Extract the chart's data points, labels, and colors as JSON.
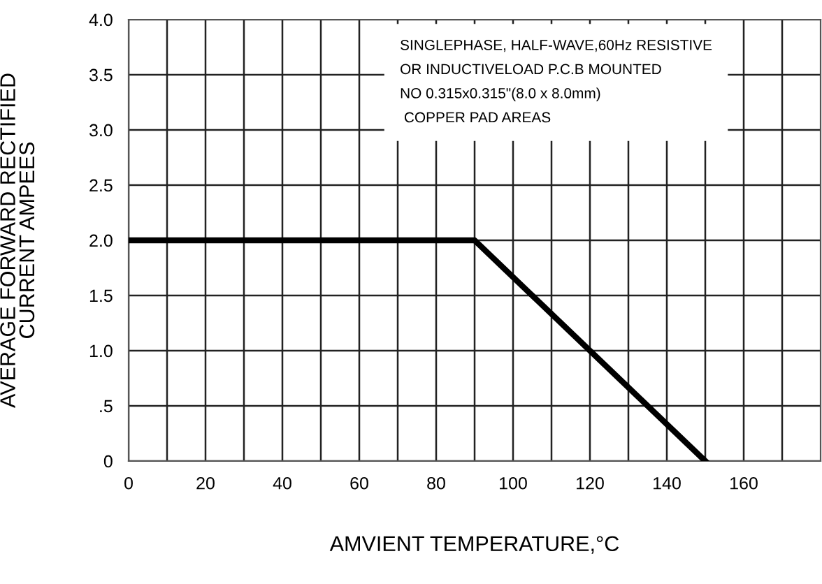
{
  "chart_data": {
    "type": "line",
    "xlabel": "AMVIENT TEMPERATURE,°C",
    "ylabel": "AVERAGE FORWARD RECTIFIED\nCURRENT AMPEES",
    "x": [
      0,
      90,
      150
    ],
    "series": [
      {
        "color": "#000000",
        "values": [
          2.0,
          2.0,
          0
        ]
      }
    ],
    "xlim": [
      0,
      180
    ],
    "xticks": [
      0,
      {
        "value": 10,
        "label": null
      },
      20,
      {
        "value": 30,
        "label": null
      },
      40,
      {
        "value": 50,
        "label": null
      },
      60,
      {
        "value": 70,
        "label": null
      },
      80,
      {
        "value": 90,
        "label": null
      },
      100,
      {
        "value": 110,
        "label": null
      },
      120,
      {
        "value": 130,
        "label": null
      },
      140,
      {
        "value": 150,
        "label": null
      },
      160,
      {
        "value": 170,
        "label": null
      }
    ],
    "ylim": [
      0,
      4.0
    ],
    "yticks": [
      0,
      {
        "value": 0.5,
        "label": ".5"
      },
      {
        "value": 1.0,
        "label": "1.0"
      },
      1.5,
      {
        "value": 2.0,
        "label": "2.0"
      },
      2.5,
      {
        "value": 3.0,
        "label": "3.0"
      },
      3.5,
      {
        "value": 4.0,
        "label": "4.0"
      }
    ],
    "grid": true,
    "line_style": "solid",
    "marker": "none",
    "annotations": [
      "SINGLEPHASE, HALF-WAVE,60Hz RESISTIVE\nOR INDUCTIVELOAD P.C.B MOUNTED\nNO 0.315x0.315\"(8.0 x 8.0mm)\n COPPER PAD AREAS"
    ]
  }
}
